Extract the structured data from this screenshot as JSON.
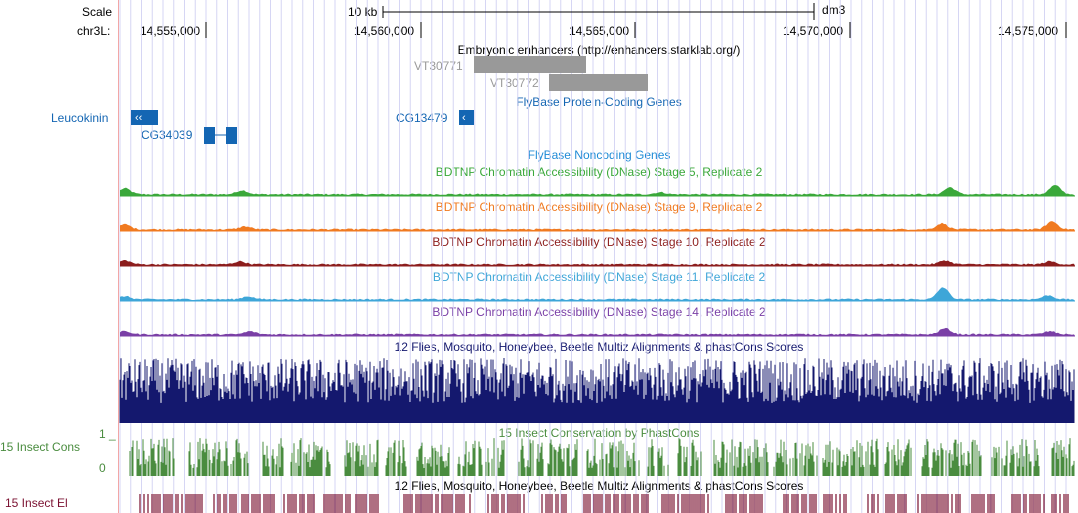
{
  "header": {
    "scale_label": "Scale",
    "scale_bar_label": "10 kb",
    "assembly": "dm3",
    "chrom_label": "chr3L:",
    "positions": [
      "14,555,000",
      "14,560,000",
      "14,565,000",
      "14,570,000",
      "14,575,000"
    ]
  },
  "tracks": {
    "enhancers": {
      "title": "Embryonic enhancers (http://enhancers.starklab.org/)",
      "items": [
        "VT30771",
        "VT30772"
      ],
      "color": "#999999"
    },
    "flybase_coding": {
      "title": "FlyBase Protein-Coding Genes",
      "genes": [
        "Leucokinin",
        "CG34039",
        "CG13479"
      ],
      "color": "#1466b3"
    },
    "flybase_noncoding": {
      "title": "FlyBase Noncoding Genes",
      "color": "#1e8ad6"
    },
    "dnase": [
      {
        "title": "BDTNP Chromatin Accessibility (DNase) Stage 5, Replicate 2",
        "color": "#3aa83a"
      },
      {
        "title": "BDTNP Chromatin Accessibility (DNase) Stage 9, Replicate 2",
        "color": "#f07a20"
      },
      {
        "title": "BDTNP Chromatin Accessibility (DNase) Stage 10, Replicate 2",
        "color": "#8c1d1d"
      },
      {
        "title": "BDTNP Chromatin Accessibility (DNase) Stage 11, Replicate 2",
        "color": "#3ea6d8"
      },
      {
        "title": "BDTNP Chromatin Accessibility (DNase) Stage 14, Replicate 2",
        "color": "#7a3fa6"
      }
    ],
    "multiz": {
      "title": "12 Flies, Mosquito, Honeybee, Beetle Multiz Alignments & phastCons Scores",
      "color": "#14186e"
    },
    "insect_cons": {
      "title": "15 Insect Conservation by PhastCons",
      "left_label": "15 Insect Cons",
      "scale_max": "1 _",
      "scale_min": "0",
      "color": "#4a8c3f"
    },
    "multiz2": {
      "title": "12 Flies, Mosquito, Honeybee, Beetle Multiz Alignments & phastCons Scores"
    },
    "insect_el": {
      "left_label": "15 Insect El",
      "color": "#7a1030"
    }
  }
}
